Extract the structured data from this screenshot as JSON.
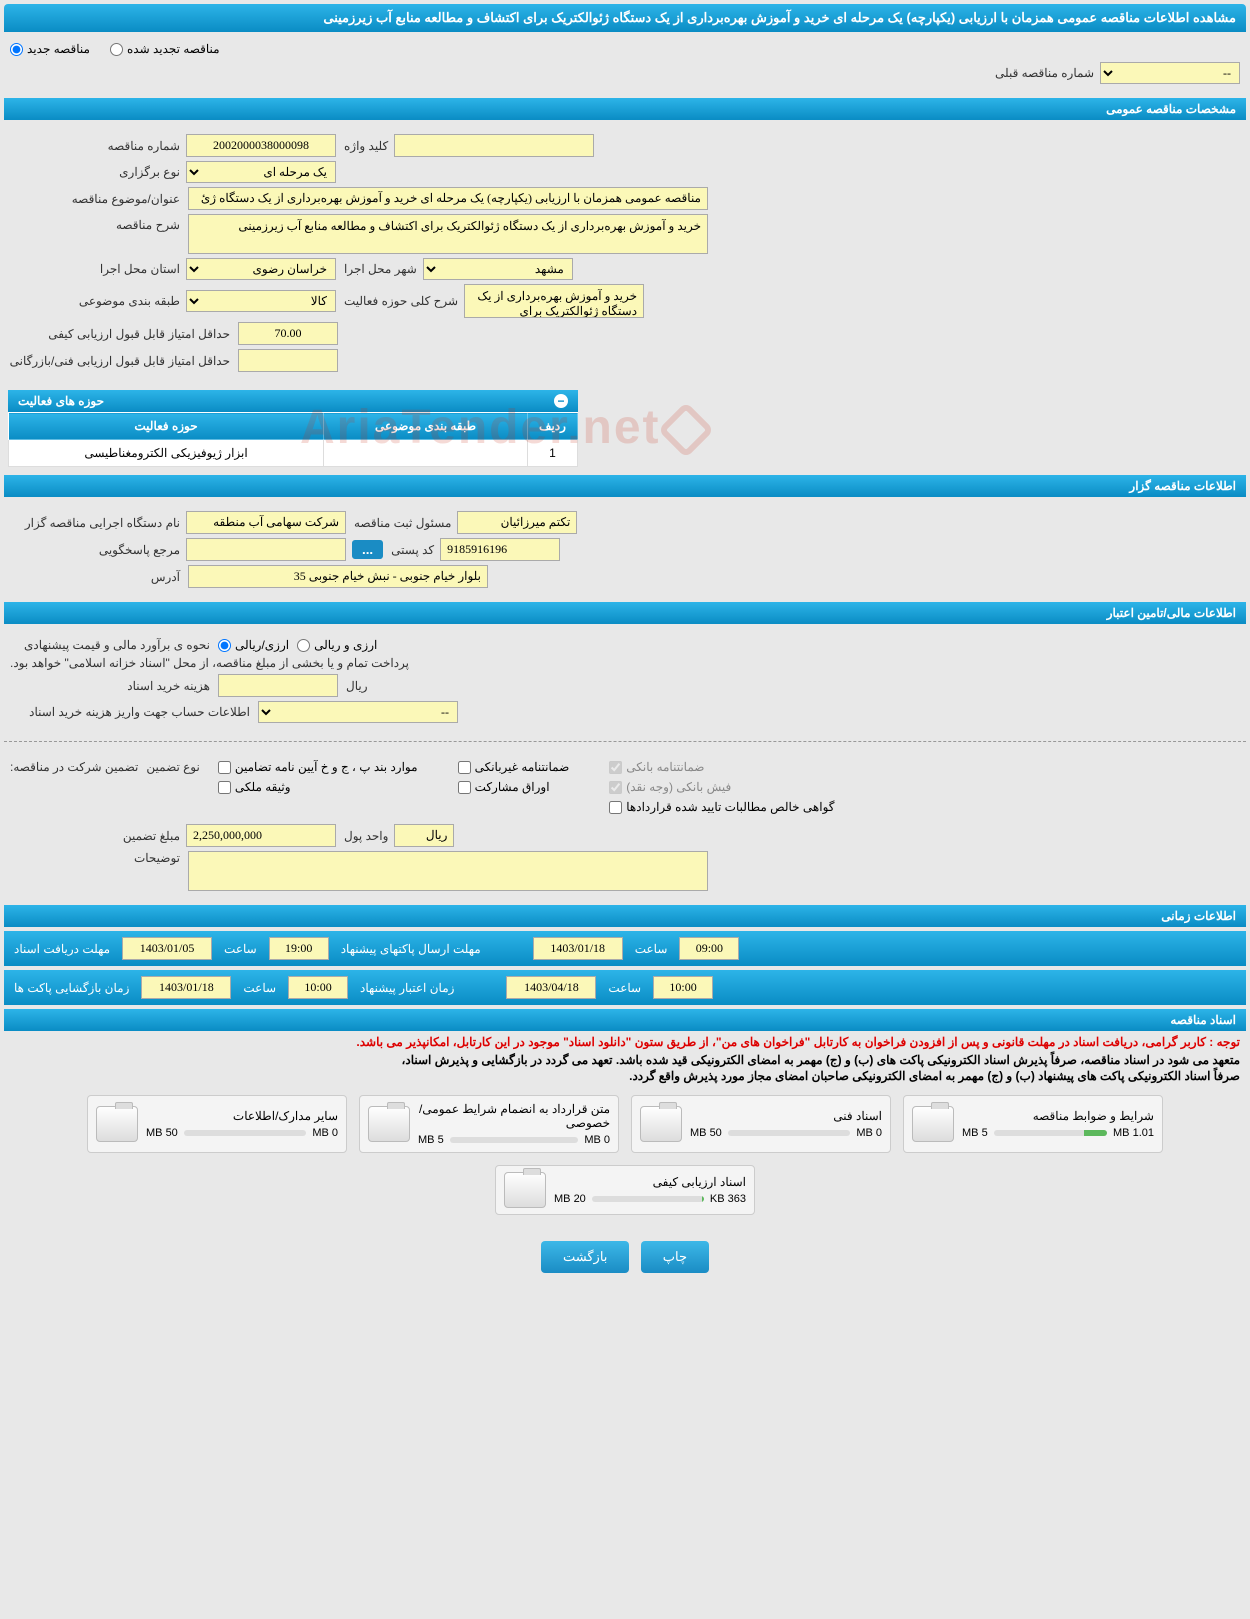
{
  "colors": {
    "header_gradient_top": "#2db4e8",
    "header_gradient_bottom": "#0a8cc4",
    "input_bg": "#fbf8b8",
    "page_bg": "#e8e8e8",
    "notice_red": "#d00",
    "bar_fill": "#5cb85c"
  },
  "page_title": "مشاهده اطلاعات مناقصه عمومی همزمان با ارزیابی (یکپارچه) یک مرحله ای خرید و آموزش بهره‌برداری از یک دستگاه ژئوالکتریک برای اکتشاف و مطالعه منابع آب زیرزمینی",
  "tender_type": {
    "new_label": "مناقصه جدید",
    "renewed_label": "مناقصه تجدید شده",
    "selected": "new"
  },
  "prev_number_label": "شماره مناقصه قبلی",
  "prev_number_value": "--",
  "sections": {
    "general": "مشخصات مناقصه عمومی",
    "organizer": "اطلاعات مناقصه گزار",
    "financial": "اطلاعات مالی/تامین اعتبار",
    "timing": "اطلاعات زمانی",
    "documents": "اسناد مناقصه"
  },
  "general": {
    "tender_number_label": "شماره مناقصه",
    "tender_number": "2002000038000098",
    "keyword_label": "کلید واژه",
    "keyword": "",
    "holding_type_label": "نوع برگزاری",
    "holding_type": "یک مرحله ای",
    "subject_label": "عنوان/موضوع مناقصه",
    "subject": "مناقصه عمومی همزمان با ارزیابی (یکپارچه) یک مرحله ای خرید و آموزش بهره‌برداری از یک دستگاه ژئ",
    "description_label": "شرح مناقصه",
    "description": "خرید و آموزش بهره‌برداری از یک دستگاه ژئوالکتریک برای اکتشاف و مطالعه منابع آب زیرزمینی",
    "province_label": "استان محل اجرا",
    "province": "خراسان رضوی",
    "city_label": "شهر محل اجرا",
    "city": "مشهد",
    "category_label": "طبقه بندی موضوعی",
    "category": "کالا",
    "activity_desc_label": "شرح کلی حوزه فعالیت",
    "activity_desc": "خرید و آموزش بهره‌برداری از یک دستگاه ژئوالکتریک برای",
    "min_quality_score_label": "حداقل امتیاز قابل قبول ارزیابی کیفی",
    "min_quality_score": "70.00",
    "min_tech_score_label": "حداقل امتیاز قابل قبول ارزیابی فنی/بازرگانی",
    "min_tech_score": ""
  },
  "activities": {
    "title": "حوزه های فعالیت",
    "columns": {
      "row": "ردیف",
      "category": "طبقه بندی موضوعی",
      "activity": "حوزه فعالیت"
    },
    "rows": [
      {
        "row": "1",
        "category": "",
        "activity": "ابزار ژیوفیزیکی الکترومغناطیسی"
      }
    ]
  },
  "organizer": {
    "executor_label": "نام دستگاه اجرایی مناقصه گزار",
    "executor": "شرکت سهامی آب منطقه",
    "responsible_label": "مسئول ثبت مناقصه",
    "responsible": "تکتم میرزائیان",
    "contact_label": "مرجع پاسخگویی",
    "contact": "",
    "dots": "...",
    "postal_label": "کد پستی",
    "postal": "9185916196",
    "address_label": "آدرس",
    "address": "بلوار خیام جنوبی - نبش خیام جنوبی 35"
  },
  "financial": {
    "estimate_label": "نحوه ی برآورد مالی و قیمت پیشنهادی",
    "currency_rial_label": "ارزی/ریالی",
    "currency_both_label": "ارزی و ریالی",
    "currency_selected": "rial",
    "payment_note": "پرداخت تمام و یا بخشی از مبلغ مناقصه، از محل \"اسناد خزانه اسلامی\" خواهد بود.",
    "doc_cost_label": "هزینه خرید اسناد",
    "doc_cost": "",
    "doc_cost_unit": "ریال",
    "account_label": "اطلاعات حساب جهت واریز هزینه خرید اسناد",
    "account_value": "--"
  },
  "guarantee": {
    "header_label": "تضمین شرکت در مناقصه:",
    "type_label": "نوع تضمین",
    "options": {
      "bank_guarantee": "ضمانتنامه بانکی",
      "nonbank_guarantee": "ضمانتنامه غیربانکی",
      "regulation_items": "موارد بند پ ، ج و خ آیین نامه تضامین",
      "bank_receipt": "فیش بانکی (وجه نقد)",
      "bonds": "اوراق مشارکت",
      "property_deposit": "وثیقه ملکی",
      "contract_claims": "گواهی خالص مطالبات تایید شده قراردادها"
    },
    "checked": {
      "bank_guarantee": true,
      "bank_receipt": true
    },
    "amount_label": "مبلغ تضمین",
    "amount": "2,250,000,000",
    "unit_label": "واحد پول",
    "unit": "ریال",
    "notes_label": "توضیحات",
    "notes": ""
  },
  "timing": {
    "doc_deadline_label": "مهلت دریافت اسناد",
    "doc_deadline_date": "1403/01/05",
    "doc_deadline_time_label": "ساعت",
    "doc_deadline_time": "19:00",
    "submit_deadline_label": "مهلت ارسال پاکتهای پیشنهاد",
    "submit_deadline_date": "1403/01/18",
    "submit_deadline_time_label": "ساعت",
    "submit_deadline_time": "09:00",
    "opening_label": "زمان بازگشایی پاکت ها",
    "opening_date": "1403/01/18",
    "opening_time_label": "ساعت",
    "opening_time": "10:00",
    "validity_label": "زمان اعتبار پیشنهاد",
    "validity_date": "1403/04/18",
    "validity_time_label": "ساعت",
    "validity_time": "10:00"
  },
  "notices": {
    "red": "توجه : کاربر گرامی، دریافت اسناد در مهلت قانونی و پس از افزودن فراخوان به کارتابل \"فراخوان های من\"، از طریق ستون \"دانلود اسناد\" موجود در این کارتابل، امکانپذیر می باشد.",
    "black1": "متعهد می شود در اسناد مناقصه، صرفاً پذیرش اسناد الکترونیکی پاکت های (ب) و (ج) مهمر به امضای الکترونیکی قید شده باشد. تعهد می گردد در بازگشایی و پذیرش اسناد،",
    "black2": "صرفاً اسناد الکترونیکی پاکت های پیشنهاد (ب) و (ج) مهمر به امضای الکترونیکی صاحبان امضای مجاز مورد پذیرش واقع گردد."
  },
  "documents": [
    {
      "title": "شرایط و ضوابط مناقصه",
      "used": "1.01 MB",
      "total": "5 MB",
      "pct": 20
    },
    {
      "title": "اسناد فنی",
      "used": "0 MB",
      "total": "50 MB",
      "pct": 0
    },
    {
      "title": "متن قرارداد به انضمام شرایط عمومی/خصوصی",
      "used": "0 MB",
      "total": "5 MB",
      "pct": 0
    },
    {
      "title": "سایر مدارک/اطلاعات",
      "used": "0 MB",
      "total": "50 MB",
      "pct": 0
    },
    {
      "title": "اسناد ارزیابی کیفی",
      "used": "363 KB",
      "total": "20 MB",
      "pct": 2
    }
  ],
  "buttons": {
    "print": "چاپ",
    "back": "بازگشت"
  },
  "watermark": "AriaTender.net"
}
